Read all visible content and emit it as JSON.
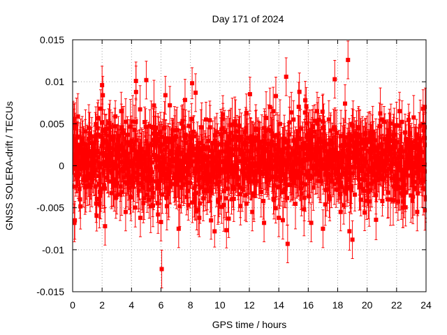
{
  "chart_data": {
    "type": "scatter",
    "title": "Day 171 of 2024",
    "xlabel": "GPS time / hours",
    "ylabel": "GNSS SOLERA-drift / TECUs",
    "xlim": [
      0,
      24
    ],
    "ylim": [
      -0.015,
      0.015
    ],
    "x_ticks": [
      0,
      2,
      4,
      6,
      8,
      10,
      12,
      14,
      16,
      18,
      20,
      22,
      24
    ],
    "x_tick_labels": [
      "0",
      "2",
      "4",
      "6",
      "8",
      "10",
      "12",
      "14",
      "16",
      "18",
      "20",
      "22",
      "24"
    ],
    "y_ticks": [
      -0.015,
      -0.01,
      -0.005,
      0,
      0.005,
      0.01,
      0.015
    ],
    "y_tick_labels": [
      "-0.015",
      "-0.01",
      "-0.005",
      "0",
      "0.005",
      "0.01",
      "0.015"
    ],
    "grid": true,
    "grid_style": "dotted",
    "error_bars": true,
    "marker": "square",
    "series_color": "#ff0000",
    "series": [
      {
        "error_bar_typical": 0.0025,
        "points": [
          [
            0.1,
            0.0045
          ],
          [
            0.12,
            -0.0068
          ],
          [
            0.15,
            -0.0065
          ],
          [
            0.2,
            0.0005
          ],
          [
            0.3,
            0.0025
          ],
          [
            0.5,
            -0.004
          ],
          [
            0.8,
            0.0012
          ],
          [
            1.0,
            -0.0025
          ],
          [
            1.3,
            0.0035
          ],
          [
            1.6,
            -0.0045
          ],
          [
            1.9,
            0.0068
          ],
          [
            2.0,
            0.0096
          ],
          [
            2.05,
            0.0084
          ],
          [
            2.2,
            -0.0072
          ],
          [
            2.5,
            0.0015
          ],
          [
            3.0,
            -0.0035
          ],
          [
            3.3,
            0.0065
          ],
          [
            3.6,
            -0.0055
          ],
          [
            4.0,
            0.003
          ],
          [
            4.3,
            0.0101
          ],
          [
            4.6,
            -0.0062
          ],
          [
            5.0,
            0.0102
          ],
          [
            5.2,
            -0.004
          ],
          [
            5.5,
            0.0045
          ],
          [
            5.8,
            -0.0058
          ],
          [
            6.0,
            -0.0067
          ],
          [
            6.05,
            -0.0123
          ],
          [
            6.3,
            0.0084
          ],
          [
            6.6,
            0.0072
          ],
          [
            7.0,
            -0.0015
          ],
          [
            7.2,
            -0.0075
          ],
          [
            7.5,
            0.0045
          ],
          [
            7.8,
            -0.003
          ],
          [
            8.0,
            0.0035
          ],
          [
            8.35,
            0.0087
          ],
          [
            8.6,
            -0.0062
          ],
          [
            9.0,
            0.0012
          ],
          [
            9.4,
            -0.0065
          ],
          [
            9.8,
            0.004
          ],
          [
            10.2,
            0.0061
          ],
          [
            10.6,
            -0.0063
          ],
          [
            11.0,
            0.0035
          ],
          [
            11.4,
            -0.0048
          ],
          [
            11.8,
            0.0063
          ],
          [
            12.2,
            -0.0055
          ],
          [
            12.6,
            0.003
          ],
          [
            13.0,
            -0.0068
          ],
          [
            13.4,
            0.007
          ],
          [
            13.8,
            0.0083
          ],
          [
            14.0,
            -0.0062
          ],
          [
            14.5,
            0.0106
          ],
          [
            14.6,
            -0.0093
          ],
          [
            15.0,
            0.0055
          ],
          [
            15.4,
            0.0088
          ],
          [
            15.8,
            0.0078
          ],
          [
            16.2,
            -0.0068
          ],
          [
            16.6,
            0.0065
          ],
          [
            17.0,
            -0.0075
          ],
          [
            17.4,
            0.0055
          ],
          [
            17.8,
            0.0103
          ],
          [
            18.2,
            -0.0055
          ],
          [
            18.5,
            0.0074
          ],
          [
            18.7,
            0.0126
          ],
          [
            18.8,
            -0.0078
          ],
          [
            19.0,
            -0.0088
          ],
          [
            19.4,
            0.0046
          ],
          [
            19.8,
            -0.003
          ],
          [
            20.2,
            0.004
          ],
          [
            20.6,
            -0.0035
          ],
          [
            21.0,
            0.0025
          ],
          [
            21.4,
            -0.004
          ],
          [
            21.8,
            0.0035
          ],
          [
            22.2,
            0.0065
          ],
          [
            22.6,
            -0.0032
          ],
          [
            23.0,
            0.0028
          ],
          [
            23.4,
            -0.0055
          ],
          [
            23.8,
            0.0068
          ],
          [
            23.95,
            0.007
          ],
          [
            24.0,
            -0.004
          ]
        ],
        "dense_band": {
          "x_range": [
            0,
            24
          ],
          "center": 0.0005,
          "spread": 0.0035
        }
      }
    ]
  }
}
